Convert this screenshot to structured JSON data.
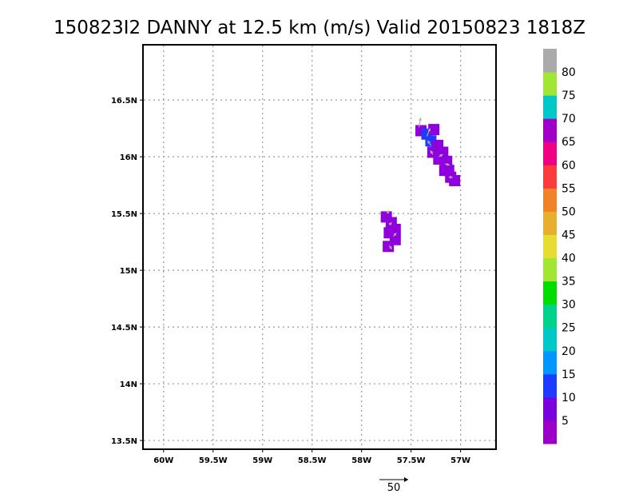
{
  "title": "150823I2 DANNY at 12.5 km (m/s) Valid 20150823 1818Z",
  "map": {
    "lon_range": [
      -60.2,
      -56.65
    ],
    "lat_range": [
      13.43,
      16.98
    ],
    "x_ticks": [
      {
        "lon": -60.0,
        "label": "60W"
      },
      {
        "lon": -59.5,
        "label": "59.5W"
      },
      {
        "lon": -59.0,
        "label": "59W"
      },
      {
        "lon": -58.5,
        "label": "58.5W"
      },
      {
        "lon": -58.0,
        "label": "58W"
      },
      {
        "lon": -57.5,
        "label": "57.5W"
      },
      {
        "lon": -57.0,
        "label": "57W"
      }
    ],
    "y_ticks": [
      {
        "lat": 13.5,
        "label": "13.5N"
      },
      {
        "lat": 14.0,
        "label": "14N"
      },
      {
        "lat": 14.5,
        "label": "14.5N"
      },
      {
        "lat": 15.0,
        "label": "15N"
      },
      {
        "lat": 15.5,
        "label": "15.5N"
      },
      {
        "lat": 16.0,
        "label": "16N"
      },
      {
        "lat": 16.5,
        "label": "16.5N"
      }
    ],
    "grid": true,
    "grid_color": "#999999"
  },
  "wind_cells": [
    {
      "lon": -57.4,
      "lat": 16.23,
      "color": "#8f00dc"
    },
    {
      "lon": -57.34,
      "lat": 16.2,
      "color": "#1e3cff"
    },
    {
      "lon": -57.3,
      "lat": 16.14,
      "color": "#1e3cff"
    },
    {
      "lon": -57.27,
      "lat": 16.24,
      "color": "#8f00dc"
    },
    {
      "lon": -57.23,
      "lat": 16.1,
      "color": "#8f00dc"
    },
    {
      "lon": -57.28,
      "lat": 16.04,
      "color": "#8f00dc"
    },
    {
      "lon": -57.18,
      "lat": 16.04,
      "color": "#8f00dc"
    },
    {
      "lon": -57.22,
      "lat": 15.98,
      "color": "#8f00dc"
    },
    {
      "lon": -57.14,
      "lat": 15.96,
      "color": "#8f00dc"
    },
    {
      "lon": -57.12,
      "lat": 15.88,
      "color": "#8f00dc"
    },
    {
      "lon": -57.16,
      "lat": 15.88,
      "color": "#8f00dc"
    },
    {
      "lon": -57.1,
      "lat": 15.82,
      "color": "#8f00dc"
    },
    {
      "lon": -57.06,
      "lat": 15.79,
      "color": "#8f00dc"
    },
    {
      "lon": -57.75,
      "lat": 15.47,
      "color": "#8f00dc"
    },
    {
      "lon": -57.7,
      "lat": 15.42,
      "color": "#8f00dc"
    },
    {
      "lon": -57.66,
      "lat": 15.36,
      "color": "#8f00dc"
    },
    {
      "lon": -57.72,
      "lat": 15.33,
      "color": "#8f00dc"
    },
    {
      "lon": -57.66,
      "lat": 15.27,
      "color": "#8f00dc"
    },
    {
      "lon": -57.73,
      "lat": 15.21,
      "color": "#8f00dc"
    }
  ],
  "wind_vectors": [
    {
      "lon": -57.42,
      "lat": 16.26,
      "u": 2,
      "v": 12
    },
    {
      "lon": -57.34,
      "lat": 16.18,
      "u": 4,
      "v": 10
    },
    {
      "lon": -57.3,
      "lat": 16.1,
      "u": -4,
      "v": 6
    },
    {
      "lon": -57.28,
      "lat": 16.02,
      "u": -3,
      "v": 5
    },
    {
      "lon": -57.22,
      "lat": 16.0,
      "u": 5,
      "v": 3
    },
    {
      "lon": -57.16,
      "lat": 15.94,
      "u": 6,
      "v": -2
    },
    {
      "lon": -57.12,
      "lat": 15.82,
      "u": 5,
      "v": 0
    },
    {
      "lon": -57.74,
      "lat": 15.5,
      "u": 2,
      "v": 4
    },
    {
      "lon": -57.72,
      "lat": 15.4,
      "u": 3,
      "v": 3
    },
    {
      "lon": -57.68,
      "lat": 15.3,
      "u": 4,
      "v": 4
    },
    {
      "lon": -57.72,
      "lat": 15.22,
      "u": 3,
      "v": -5
    }
  ],
  "reference_vector": {
    "label": "50"
  },
  "colorbar": {
    "colors": [
      "#9b00c8",
      "#7a00dc",
      "#1e3cff",
      "#0096ff",
      "#00c8c8",
      "#00d28c",
      "#00dc00",
      "#a0e632",
      "#e6dc32",
      "#e6af2d",
      "#f08228",
      "#fa3c3c",
      "#f00082",
      "#a000c8",
      "#00c8c8",
      "#a0e632",
      "#aaaaaa"
    ],
    "labels": [
      "5",
      "10",
      "15",
      "20",
      "25",
      "30",
      "35",
      "40",
      "45",
      "50",
      "55",
      "60",
      "65",
      "70",
      "75",
      "80"
    ]
  }
}
